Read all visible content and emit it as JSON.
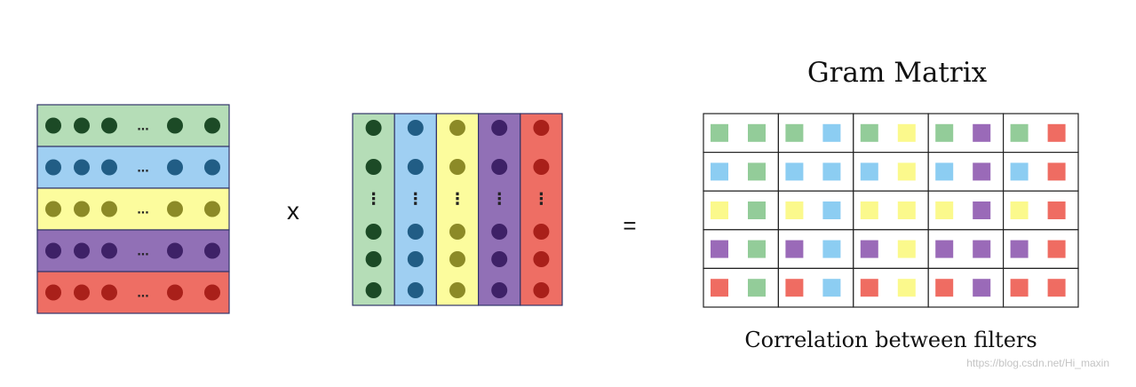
{
  "title": "Gram Matrix",
  "subtitle": "Correlation between filters",
  "operators": {
    "multiply": "x",
    "equals": "="
  },
  "ellipsis": {
    "horizontal": "...",
    "vertical": "⋮"
  },
  "watermark": "https://blog.csdn.net/Hi_maxin",
  "colors": {
    "green": {
      "band": "#b5ddb7",
      "dot": "#1c4a26",
      "square": "#93cc99"
    },
    "blue": {
      "band": "#9fcff2",
      "dot": "#215d85",
      "square": "#8ccdf2"
    },
    "yellow": {
      "band": "#fcfc9d",
      "dot": "#8c8a27",
      "square": "#fbf98c"
    },
    "purple": {
      "band": "#9170b6",
      "dot": "#3e2167",
      "square": "#9a6ab8"
    },
    "red": {
      "band": "#ee6e64",
      "dot": "#a9201a",
      "square": "#ef6c62"
    }
  },
  "filters": [
    "green",
    "blue",
    "yellow",
    "purple",
    "red"
  ],
  "gram_matrix": {
    "rows": 5,
    "cols": 5,
    "cell_pair_order": [
      "row-filter",
      "column-filter"
    ]
  }
}
